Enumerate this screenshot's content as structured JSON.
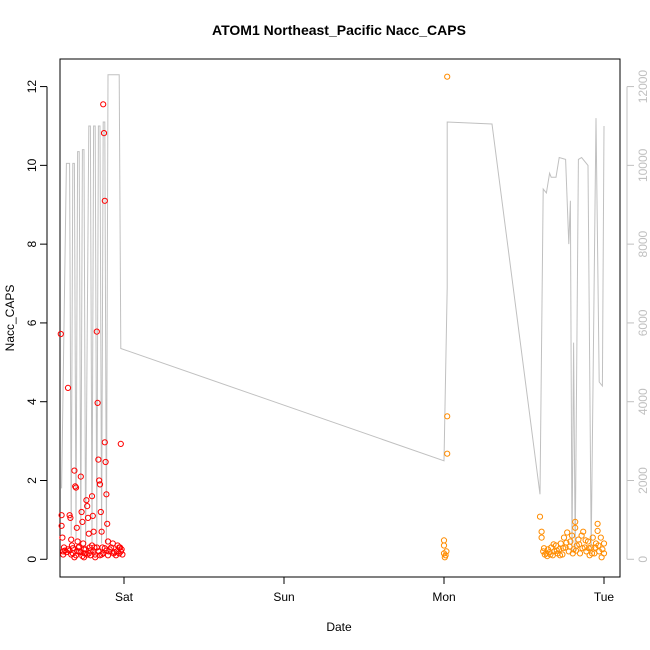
{
  "chart_data": {
    "type": "scatter",
    "title": "ATOM1 Northeast_Pacific Nacc_CAPS",
    "xlabel": "Date",
    "ylabel": "Nacc_CAPS",
    "xlim": [
      -0.4,
      3.1
    ],
    "ylim": [
      -0.45,
      12.7
    ],
    "y2lim": [
      -450,
      12700
    ],
    "x_ticks": [
      {
        "value": 0,
        "label": "Sat"
      },
      {
        "value": 1,
        "label": "Sun"
      },
      {
        "value": 2,
        "label": "Mon"
      },
      {
        "value": 3,
        "label": "Tue"
      }
    ],
    "y_ticks": [
      0,
      2,
      4,
      6,
      8,
      10,
      12
    ],
    "y2_ticks": [
      0,
      2000,
      4000,
      6000,
      8000,
      10000,
      12000
    ],
    "colors": {
      "series_red": "#ff0000",
      "series_orange": "#ff8c00",
      "altitude_line": "#c0c0c0",
      "axis": "#000000",
      "right_axis": "#c0c0c0"
    },
    "series": [
      {
        "color": "#ff0000",
        "points": [
          [
            -0.395,
            5.72
          ],
          [
            -0.39,
            1.12
          ],
          [
            -0.39,
            0.85
          ],
          [
            -0.385,
            0.55
          ],
          [
            -0.38,
            0.2
          ],
          [
            -0.375,
            0.3
          ],
          [
            -0.35,
            4.35
          ],
          [
            -0.34,
            1.12
          ],
          [
            -0.335,
            1.05
          ],
          [
            -0.33,
            0.5
          ],
          [
            -0.325,
            0.35
          ],
          [
            -0.32,
            0.15
          ],
          [
            -0.31,
            2.25
          ],
          [
            -0.305,
            1.85
          ],
          [
            -0.3,
            1.82
          ],
          [
            -0.295,
            0.8
          ],
          [
            -0.29,
            0.45
          ],
          [
            -0.285,
            0.3
          ],
          [
            -0.28,
            0.2
          ],
          [
            -0.27,
            2.1
          ],
          [
            -0.265,
            1.2
          ],
          [
            -0.26,
            0.95
          ],
          [
            -0.255,
            0.4
          ],
          [
            -0.25,
            0.25
          ],
          [
            -0.245,
            0.15
          ],
          [
            -0.235,
            1.5
          ],
          [
            -0.23,
            1.35
          ],
          [
            -0.225,
            1.05
          ],
          [
            -0.22,
            0.65
          ],
          [
            -0.215,
            0.3
          ],
          [
            -0.21,
            0.1
          ],
          [
            -0.2,
            1.6
          ],
          [
            -0.195,
            1.1
          ],
          [
            -0.19,
            0.7
          ],
          [
            -0.185,
            0.3
          ],
          [
            -0.18,
            0.12
          ],
          [
            -0.17,
            5.78
          ],
          [
            -0.165,
            3.97
          ],
          [
            -0.16,
            2.53
          ],
          [
            -0.155,
            2.0
          ],
          [
            -0.15,
            1.9
          ],
          [
            -0.145,
            1.2
          ],
          [
            -0.14,
            0.7
          ],
          [
            -0.135,
            0.3
          ],
          [
            -0.13,
            11.55
          ],
          [
            -0.125,
            10.82
          ],
          [
            -0.12,
            9.1
          ],
          [
            -0.12,
            2.97
          ],
          [
            -0.115,
            2.47
          ],
          [
            -0.11,
            1.65
          ],
          [
            -0.105,
            0.9
          ],
          [
            -0.1,
            0.45
          ],
          [
            -0.095,
            0.2
          ],
          [
            -0.02,
            2.93
          ],
          [
            -0.025,
            0.3
          ],
          [
            -0.03,
            0.15
          ],
          [
            -0.38,
            0.12
          ],
          [
            -0.36,
            0.18
          ],
          [
            -0.34,
            0.22
          ],
          [
            -0.32,
            0.28
          ],
          [
            -0.3,
            0.1
          ],
          [
            -0.28,
            0.32
          ],
          [
            -0.26,
            0.08
          ],
          [
            -0.24,
            0.25
          ],
          [
            -0.22,
            0.15
          ],
          [
            -0.2,
            0.35
          ],
          [
            -0.18,
            0.05
          ],
          [
            -0.16,
            0.2
          ],
          [
            -0.14,
            0.12
          ],
          [
            -0.12,
            0.28
          ],
          [
            -0.1,
            0.1
          ],
          [
            -0.08,
            0.3
          ],
          [
            -0.06,
            0.18
          ],
          [
            -0.04,
            0.35
          ],
          [
            -0.02,
            0.2
          ],
          [
            -0.01,
            0.12
          ],
          [
            -0.37,
            0.22
          ],
          [
            -0.33,
            0.12
          ],
          [
            -0.29,
            0.2
          ],
          [
            -0.25,
            0.05
          ],
          [
            -0.21,
            0.22
          ],
          [
            -0.17,
            0.3
          ],
          [
            -0.13,
            0.15
          ],
          [
            -0.09,
            0.25
          ],
          [
            -0.05,
            0.1
          ],
          [
            -0.03,
            0.3
          ],
          [
            -0.07,
            0.4
          ],
          [
            -0.11,
            0.22
          ],
          [
            -0.15,
            0.1
          ],
          [
            -0.19,
            0.2
          ],
          [
            -0.23,
            0.12
          ],
          [
            -0.27,
            0.18
          ],
          [
            -0.31,
            0.05
          ],
          [
            -0.35,
            0.25
          ],
          [
            -0.065,
            0.15
          ],
          [
            -0.045,
            0.2
          ],
          [
            -0.015,
            0.25
          ]
        ]
      },
      {
        "color": "#ff8c00",
        "points": [
          [
            2.02,
            12.25
          ],
          [
            2.02,
            3.63
          ],
          [
            2.02,
            2.68
          ],
          [
            2.0,
            0.48
          ],
          [
            2.0,
            0.35
          ],
          [
            2.0,
            0.15
          ],
          [
            2.005,
            0.05
          ],
          [
            2.015,
            0.2
          ],
          [
            2.01,
            0.1
          ],
          [
            2.6,
            1.08
          ],
          [
            2.61,
            0.7
          ],
          [
            2.61,
            0.55
          ],
          [
            2.62,
            0.2
          ],
          [
            2.63,
            0.12
          ],
          [
            2.64,
            0.15
          ],
          [
            2.65,
            0.25
          ],
          [
            2.66,
            0.18
          ],
          [
            2.67,
            0.3
          ],
          [
            2.68,
            0.1
          ],
          [
            2.69,
            0.2
          ],
          [
            2.7,
            0.35
          ],
          [
            2.71,
            0.15
          ],
          [
            2.72,
            0.25
          ],
          [
            2.73,
            0.4
          ],
          [
            2.74,
            0.12
          ],
          [
            2.75,
            0.55
          ],
          [
            2.76,
            0.3
          ],
          [
            2.77,
            0.68
          ],
          [
            2.78,
            0.2
          ],
          [
            2.79,
            0.45
          ],
          [
            2.8,
            0.6
          ],
          [
            2.81,
            0.25
          ],
          [
            2.82,
            0.8
          ],
          [
            2.82,
            0.95
          ],
          [
            2.83,
            0.35
          ],
          [
            2.84,
            0.5
          ],
          [
            2.85,
            0.15
          ],
          [
            2.86,
            0.6
          ],
          [
            2.87,
            0.7
          ],
          [
            2.88,
            0.3
          ],
          [
            2.89,
            0.2
          ],
          [
            2.9,
            0.45
          ],
          [
            2.91,
            0.1
          ],
          [
            2.92,
            0.3
          ],
          [
            2.93,
            0.55
          ],
          [
            2.94,
            0.15
          ],
          [
            2.95,
            0.4
          ],
          [
            2.96,
            0.72
          ],
          [
            2.96,
            0.9
          ],
          [
            2.97,
            0.2
          ],
          [
            2.98,
            0.55
          ],
          [
            2.99,
            0.25
          ],
          [
            3.0,
            0.4
          ],
          [
            3.0,
            0.15
          ],
          [
            2.985,
            0.05
          ],
          [
            2.625,
            0.28
          ],
          [
            2.645,
            0.08
          ],
          [
            2.665,
            0.12
          ],
          [
            2.685,
            0.38
          ],
          [
            2.705,
            0.22
          ],
          [
            2.725,
            0.1
          ],
          [
            2.745,
            0.28
          ],
          [
            2.765,
            0.42
          ],
          [
            2.785,
            0.32
          ],
          [
            2.805,
            0.15
          ],
          [
            2.825,
            0.22
          ],
          [
            2.845,
            0.38
          ],
          [
            2.865,
            0.28
          ],
          [
            2.885,
            0.48
          ],
          [
            2.905,
            0.28
          ],
          [
            2.925,
            0.15
          ],
          [
            2.945,
            0.3
          ],
          [
            2.965,
            0.35
          ]
        ]
      }
    ],
    "line_series": {
      "axis": "right",
      "color": "#c0c0c0",
      "points": [
        [
          -0.39,
          1800
        ],
        [
          -0.36,
          10050
        ],
        [
          -0.34,
          10050
        ],
        [
          -0.33,
          600
        ],
        [
          -0.32,
          10050
        ],
        [
          -0.31,
          10050
        ],
        [
          -0.3,
          500
        ],
        [
          -0.29,
          10350
        ],
        [
          -0.28,
          10350
        ],
        [
          -0.27,
          400
        ],
        [
          -0.26,
          10400
        ],
        [
          -0.25,
          10400
        ],
        [
          -0.24,
          300
        ],
        [
          -0.22,
          11000
        ],
        [
          -0.21,
          11000
        ],
        [
          -0.2,
          400
        ],
        [
          -0.19,
          11000
        ],
        [
          -0.18,
          11000
        ],
        [
          -0.17,
          300
        ],
        [
          -0.16,
          11000
        ],
        [
          -0.15,
          11000
        ],
        [
          -0.14,
          400
        ],
        [
          -0.13,
          11100
        ],
        [
          -0.12,
          11100
        ],
        [
          -0.11,
          400
        ],
        [
          -0.1,
          12300
        ],
        [
          -0.03,
          12300
        ],
        [
          -0.02,
          5350
        ],
        [
          2.0,
          2500
        ],
        [
          2.02,
          6900
        ],
        [
          2.02,
          11100
        ],
        [
          2.3,
          11050
        ],
        [
          2.6,
          1650
        ],
        [
          2.62,
          9400
        ],
        [
          2.64,
          9300
        ],
        [
          2.66,
          9800
        ],
        [
          2.67,
          9700
        ],
        [
          2.7,
          9700
        ],
        [
          2.72,
          10200
        ],
        [
          2.76,
          10150
        ],
        [
          2.78,
          8000
        ],
        [
          2.79,
          9100
        ],
        [
          2.8,
          200
        ],
        [
          2.81,
          5500
        ],
        [
          2.82,
          200
        ],
        [
          2.84,
          10150
        ],
        [
          2.86,
          10200
        ],
        [
          2.9,
          10000
        ],
        [
          2.92,
          300
        ],
        [
          2.95,
          11200
        ],
        [
          2.97,
          4500
        ],
        [
          2.99,
          4400
        ],
        [
          3.0,
          11000
        ]
      ]
    }
  }
}
